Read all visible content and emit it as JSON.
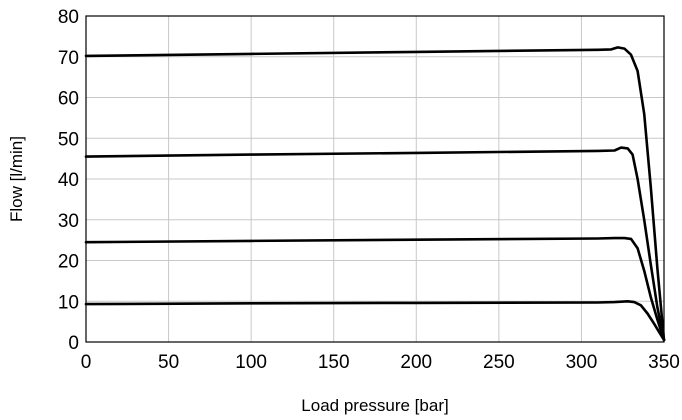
{
  "chart_data": {
    "type": "line",
    "title": "",
    "xlabel": "Load pressure [bar]",
    "ylabel": "Flow [l/min]",
    "xlim": [
      0,
      350
    ],
    "ylim": [
      0,
      80
    ],
    "xticks": [
      0,
      50,
      100,
      150,
      200,
      250,
      300,
      350
    ],
    "yticks": [
      0,
      10,
      20,
      30,
      40,
      50,
      60,
      70,
      80
    ],
    "grid": true,
    "legend": "none",
    "series": [
      {
        "x": [
          0,
          100,
          200,
          310,
          318,
          322,
          326,
          330,
          334,
          338,
          342,
          346,
          350
        ],
        "y": [
          70.2,
          70.7,
          71.2,
          71.7,
          71.8,
          72.3,
          72.0,
          70.5,
          66.5,
          56.0,
          38.0,
          18.0,
          0.5
        ]
      },
      {
        "x": [
          0,
          100,
          200,
          310,
          320,
          324,
          328,
          331,
          334,
          338,
          342,
          346,
          350
        ],
        "y": [
          45.5,
          46.0,
          46.4,
          46.9,
          47.0,
          47.7,
          47.5,
          46.0,
          40.0,
          30.0,
          19.0,
          8.5,
          0.5
        ]
      },
      {
        "x": [
          0,
          100,
          200,
          310,
          320,
          326,
          330,
          334,
          338,
          342,
          346,
          350
        ],
        "y": [
          24.5,
          24.8,
          25.1,
          25.4,
          25.5,
          25.5,
          25.3,
          23.0,
          17.5,
          11.0,
          5.5,
          0.5
        ]
      },
      {
        "x": [
          0,
          100,
          200,
          310,
          320,
          328,
          332,
          336,
          340,
          344,
          347,
          350
        ],
        "y": [
          9.3,
          9.5,
          9.6,
          9.7,
          9.8,
          10.0,
          9.8,
          9.0,
          7.0,
          4.5,
          2.5,
          0.5
        ]
      }
    ]
  }
}
